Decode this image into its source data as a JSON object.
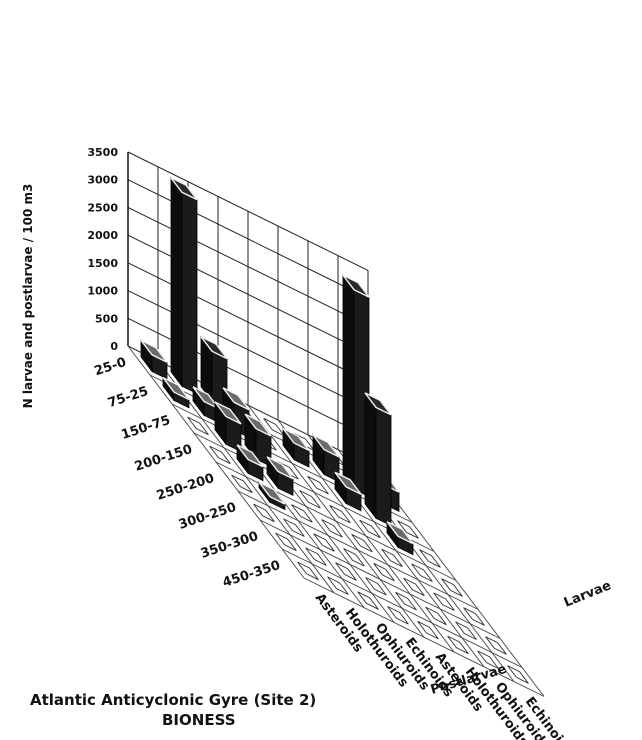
{
  "caption": {
    "line1": "Atlantic Anticyclonic Gyre  (Site 2)",
    "line2": "BIONESS"
  },
  "chart_data": {
    "type": "bar3d",
    "ylabel": "N larvae and postlarvae / 100  m3",
    "zticks": [
      0,
      500,
      1000,
      1500,
      2000,
      2500,
      3000,
      3500
    ],
    "zlim": [
      0,
      3500
    ],
    "depth_layers": [
      "25-0",
      "75-25",
      "150-75",
      "200-150",
      "250-200",
      "300-250",
      "350-300",
      "450-350"
    ],
    "taxa": [
      "Asteroids",
      "Holothuroids",
      "Ophiuroids",
      "Echinoids",
      "Asteroids",
      "Holothuroids",
      "Ophiuroids",
      "Echinoids"
    ],
    "groups": [
      {
        "name": "Postlarvae",
        "columns": [
          0,
          1,
          2,
          3
        ]
      },
      {
        "name": "Larvae",
        "columns": [
          4,
          5,
          6,
          7
        ]
      }
    ],
    "values": [
      [
        300,
        3500,
        900,
        0,
        0,
        0,
        0,
        0
      ],
      [
        150,
        250,
        500,
        0,
        300,
        450,
        3600,
        350
      ],
      [
        0,
        500,
        550,
        0,
        0,
        300,
        2000,
        0
      ],
      [
        0,
        250,
        300,
        0,
        0,
        0,
        200,
        0
      ],
      [
        0,
        100,
        0,
        0,
        0,
        0,
        0,
        0
      ],
      [
        0,
        0,
        0,
        0,
        0,
        0,
        0,
        0
      ],
      [
        0,
        0,
        0,
        0,
        0,
        0,
        0,
        0
      ],
      [
        0,
        0,
        0,
        0,
        0,
        0,
        0,
        0
      ]
    ]
  }
}
